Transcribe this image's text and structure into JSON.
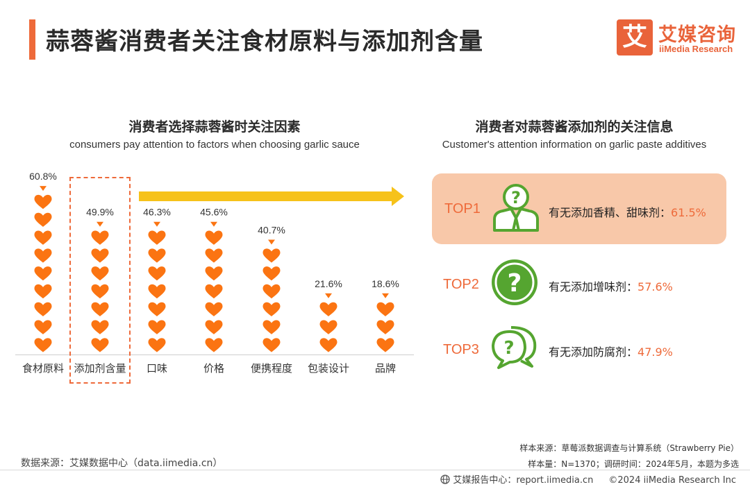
{
  "page_title": "蒜蓉酱消费者关注食材原料与添加剂含量",
  "logo": {
    "mark": "艾",
    "name_cn": "艾媒咨询",
    "name_en": "iiMedia Research"
  },
  "left_section": {
    "title": "消费者选择蒜蓉酱时关注因素",
    "subtitle": "consumers pay attention to factors when choosing garlic sauce"
  },
  "right_section": {
    "title": "消费者对蒜蓉酱添加剂的关注信息",
    "subtitle": "Customer's attention information on garlic paste additives",
    "items": [
      {
        "rank": "TOP1",
        "text": "有无添加香精、甜味剂：",
        "pct": "61.5%",
        "icon": "person-question-icon"
      },
      {
        "rank": "TOP2",
        "text": "有无添加增味剂：",
        "pct": "57.6%",
        "icon": "circle-question-icon"
      },
      {
        "rank": "TOP3",
        "text": "有无添加防腐剂：",
        "pct": "47.9%",
        "icon": "chat-question-icon"
      }
    ]
  },
  "chart_data": {
    "type": "bar",
    "categories": [
      "食材原料",
      "添加剂含量",
      "口味",
      "价格",
      "便携程度",
      "包装设计",
      "品牌"
    ],
    "values": [
      60.8,
      49.9,
      46.3,
      45.6,
      40.7,
      21.6,
      18.6
    ],
    "value_labels": [
      "60.8%",
      "49.9%",
      "46.3%",
      "45.6%",
      "40.7%",
      "21.6%",
      "18.6%"
    ],
    "unit": "%",
    "highlighted_category": "添加剂含量",
    "mark": "heart-icon",
    "colors": {
      "heart": "#fb7412",
      "accent": "#ee6a3a",
      "arrow": "#f6c21a",
      "card": "#f8c8a9",
      "icon_green": "#55a530"
    }
  },
  "footer": {
    "source_left": "数据来源：艾媒数据中心（data.iimedia.cn）",
    "sample_source": "样本来源：草莓派数据调查与计算系统（Strawberry Pie）",
    "sample_size": "样本量：N=1370；调研时间：2024年5月，本题为多选",
    "report_center": "艾媒报告中心：report.iimedia.cn",
    "copyright": "©2024  iiMedia Research  Inc"
  }
}
